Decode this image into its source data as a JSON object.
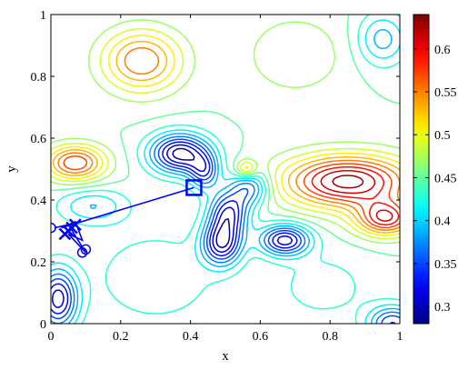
{
  "chart_data": {
    "type": "contour",
    "xlabel": "x",
    "ylabel": "y",
    "xlim": [
      0,
      1
    ],
    "ylim": [
      0,
      1
    ],
    "x_ticks": [
      0,
      0.2,
      0.4,
      0.6,
      0.8,
      1
    ],
    "x_tick_labels": [
      "0",
      "0.2",
      "0.4",
      "0.6",
      "0.8",
      "1"
    ],
    "y_ticks": [
      0,
      0.2,
      0.4,
      0.6,
      0.8,
      1
    ],
    "y_tick_labels": [
      "0",
      "0.2",
      "0.4",
      "0.6",
      "0.8",
      "1"
    ],
    "colorbar": {
      "colormap": "jet",
      "range": [
        0.28,
        0.64
      ],
      "ticks": [
        0.3,
        0.35,
        0.4,
        0.45,
        0.5,
        0.55,
        0.6
      ],
      "tick_labels": [
        "0.3",
        "0.35",
        "0.4",
        "0.45",
        "0.5",
        "0.55",
        "0.6"
      ]
    },
    "field": {
      "base": 0.45,
      "features": [
        {
          "x": 0.37,
          "y": 0.55,
          "amp": -0.17,
          "sx": 0.06,
          "sy": 0.045
        },
        {
          "x": 0.44,
          "y": 0.49,
          "amp": -0.1,
          "sx": 0.03,
          "sy": 0.04
        },
        {
          "x": 0.51,
          "y": 0.36,
          "amp": -0.13,
          "sx": 0.04,
          "sy": 0.05
        },
        {
          "x": 0.49,
          "y": 0.26,
          "amp": -0.15,
          "sx": 0.04,
          "sy": 0.05
        },
        {
          "x": 0.67,
          "y": 0.27,
          "amp": -0.15,
          "sx": 0.05,
          "sy": 0.035
        },
        {
          "x": 0.57,
          "y": 0.44,
          "amp": -0.1,
          "sx": 0.04,
          "sy": 0.04
        },
        {
          "x": 0.02,
          "y": 0.08,
          "amp": -0.15,
          "sx": 0.04,
          "sy": 0.07
        },
        {
          "x": 0.98,
          "y": 0.0,
          "amp": -0.12,
          "sx": 0.05,
          "sy": 0.04
        },
        {
          "x": 0.12,
          "y": 0.38,
          "amp": -0.06,
          "sx": 0.07,
          "sy": 0.04
        },
        {
          "x": 0.95,
          "y": 0.92,
          "amp": -0.07,
          "sx": 0.05,
          "sy": 0.06
        },
        {
          "x": 0.07,
          "y": 0.52,
          "amp": 0.14,
          "sx": 0.06,
          "sy": 0.04
        },
        {
          "x": 0.26,
          "y": 0.85,
          "amp": 0.12,
          "sx": 0.08,
          "sy": 0.07
        },
        {
          "x": 0.85,
          "y": 0.46,
          "amp": 0.19,
          "sx": 0.13,
          "sy": 0.06
        },
        {
          "x": 0.96,
          "y": 0.34,
          "amp": 0.15,
          "sx": 0.06,
          "sy": 0.04
        },
        {
          "x": 0.56,
          "y": 0.5,
          "amp": 0.08,
          "sx": 0.02,
          "sy": 0.02
        },
        {
          "x": 0.7,
          "y": 0.87,
          "amp": 0.04,
          "sx": 0.1,
          "sy": 0.09
        },
        {
          "x": 0.3,
          "y": 0.15,
          "amp": -0.04,
          "sx": 0.12,
          "sy": 0.1
        },
        {
          "x": 0.78,
          "y": 0.12,
          "amp": -0.03,
          "sx": 0.1,
          "sy": 0.08
        }
      ],
      "levels": [
        0.29,
        0.31,
        0.33,
        0.35,
        0.37,
        0.39,
        0.41,
        0.43,
        0.45,
        0.47,
        0.49,
        0.51,
        0.53,
        0.55,
        0.57,
        0.59,
        0.61,
        0.63
      ]
    },
    "path": {
      "x": [
        0.41,
        0.03,
        0.07,
        0.09,
        0.05,
        0.1,
        0.05,
        0.01
      ],
      "y": [
        0.44,
        0.31,
        0.33,
        0.27,
        0.29,
        0.23,
        0.32,
        0.31
      ]
    },
    "circle_markers": {
      "x": [
        0.0,
        0.09,
        0.1
      ],
      "y": [
        0.31,
        0.23,
        0.24
      ]
    },
    "cross_markers": {
      "x": [
        0.07,
        0.06,
        0.05,
        0.04
      ],
      "y": [
        0.32,
        0.31,
        0.3,
        0.29
      ]
    },
    "square_marker": {
      "x": 0.41,
      "y": 0.44
    },
    "marker_color": "#0000ff"
  }
}
